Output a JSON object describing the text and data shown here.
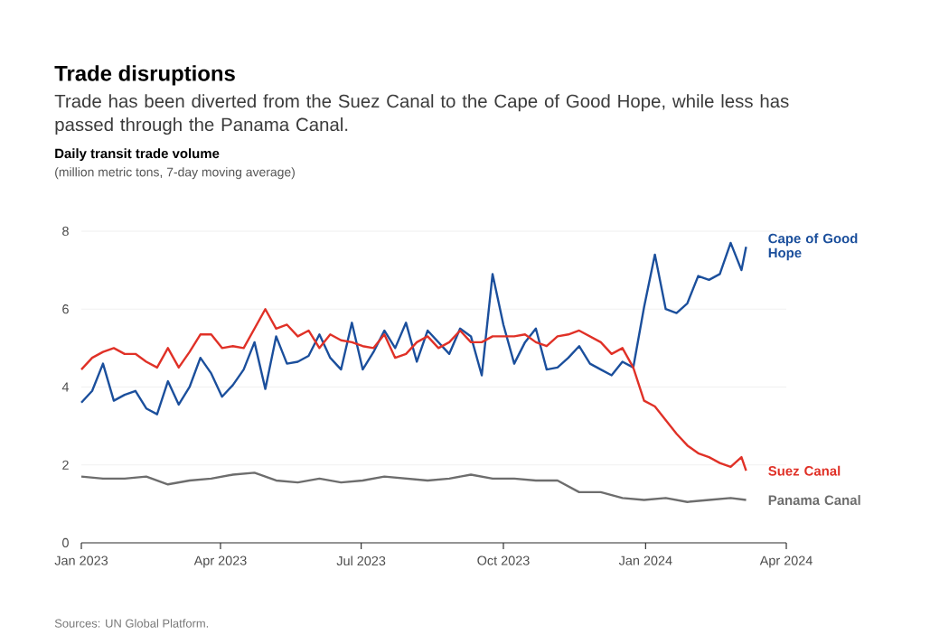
{
  "chart_data": {
    "type": "line",
    "title": "Trade disruptions",
    "subtitle": "Trade has been diverted from the Suez Canal to the Cape of Good Hope, while less has passed through the Panama Canal.",
    "ylabel": "Daily transit trade volume",
    "annotations": [
      "(million metric tons, 7-day moving average)",
      "Sources: UN Global Platform."
    ],
    "x": [
      "2023-01-01",
      "2023-01-08",
      "2023-01-15",
      "2023-01-22",
      "2023-01-29",
      "2023-02-05",
      "2023-02-12",
      "2023-02-19",
      "2023-02-26",
      "2023-03-05",
      "2023-03-12",
      "2023-03-19",
      "2023-03-26",
      "2023-04-02",
      "2023-04-09",
      "2023-04-16",
      "2023-04-23",
      "2023-04-30",
      "2023-05-07",
      "2023-05-14",
      "2023-05-21",
      "2023-05-28",
      "2023-06-04",
      "2023-06-11",
      "2023-06-18",
      "2023-06-25",
      "2023-07-02",
      "2023-07-09",
      "2023-07-16",
      "2023-07-23",
      "2023-07-30",
      "2023-08-06",
      "2023-08-13",
      "2023-08-20",
      "2023-08-27",
      "2023-09-03",
      "2023-09-10",
      "2023-09-17",
      "2023-09-24",
      "2023-10-01",
      "2023-10-08",
      "2023-10-15",
      "2023-10-22",
      "2023-10-29",
      "2023-11-05",
      "2023-11-12",
      "2023-11-19",
      "2023-11-26",
      "2023-12-03",
      "2023-12-10",
      "2023-12-17",
      "2023-12-24",
      "2023-12-31",
      "2024-01-07",
      "2024-01-14",
      "2024-01-21",
      "2024-01-28",
      "2024-02-04",
      "2024-02-11",
      "2024-02-18",
      "2024-02-25",
      "2024-03-03",
      "2024-03-06"
    ],
    "xlim": [
      "2023-01-01",
      "2024-04-01"
    ],
    "xticks": [
      {
        "value": "2023-01-01",
        "label": "Jan 2023"
      },
      {
        "value": "2023-04-01",
        "label": "Apr 2023"
      },
      {
        "value": "2023-07-01",
        "label": "Jul 2023"
      },
      {
        "value": "2023-10-01",
        "label": "Oct 2023"
      },
      {
        "value": "2024-01-01",
        "label": "Jan 2024"
      },
      {
        "value": "2024-04-01",
        "label": "Apr 2024"
      }
    ],
    "ylim": [
      0,
      8
    ],
    "yticks": [
      0,
      2,
      4,
      6,
      8
    ],
    "grid": "y",
    "series": [
      {
        "name": "Cape of Good Hope",
        "color": "#1b4f9c",
        "values": [
          3.6,
          3.9,
          4.6,
          3.65,
          3.8,
          3.9,
          3.45,
          3.3,
          4.15,
          3.55,
          4.0,
          4.75,
          4.35,
          3.75,
          4.05,
          4.45,
          5.15,
          3.95,
          5.3,
          4.6,
          4.65,
          4.8,
          5.35,
          4.75,
          4.45,
          5.65,
          4.45,
          4.9,
          5.45,
          5.0,
          5.65,
          4.65,
          5.45,
          5.15,
          4.85,
          5.5,
          5.3,
          4.3,
          6.9,
          5.6,
          4.6,
          5.15,
          5.5,
          4.45,
          4.5,
          4.75,
          5.05,
          4.6,
          4.45,
          4.3,
          4.65,
          4.5,
          6.05,
          7.4,
          6.0,
          5.9,
          6.15,
          6.85,
          6.75,
          6.9,
          7.7,
          7.0,
          7.6
        ]
      },
      {
        "name": "Suez Canal",
        "color": "#e03127",
        "values": [
          4.45,
          4.75,
          4.9,
          5.0,
          4.85,
          4.85,
          4.65,
          4.5,
          5.0,
          4.5,
          4.9,
          5.35,
          5.35,
          5.0,
          5.05,
          5.0,
          5.5,
          6.0,
          5.5,
          5.6,
          5.3,
          5.45,
          5.0,
          5.35,
          5.2,
          5.15,
          5.05,
          5.0,
          5.35,
          4.75,
          4.85,
          5.15,
          5.3,
          5.0,
          5.15,
          5.45,
          5.15,
          5.15,
          5.3,
          5.3,
          5.3,
          5.35,
          5.15,
          5.05,
          5.3,
          5.35,
          5.45,
          5.3,
          5.15,
          4.85,
          5.0,
          4.5,
          3.65,
          3.5,
          3.15,
          2.8,
          2.5,
          2.3,
          2.2,
          2.05,
          1.95,
          2.2,
          1.85
        ]
      },
      {
        "name": "Panama Canal",
        "color": "#6d6d6d",
        "x": [
          "2023-01-01",
          "2023-01-15",
          "2023-01-29",
          "2023-02-12",
          "2023-02-26",
          "2023-03-12",
          "2023-03-26",
          "2023-04-09",
          "2023-04-23",
          "2023-05-07",
          "2023-05-21",
          "2023-06-04",
          "2023-06-18",
          "2023-07-02",
          "2023-07-16",
          "2023-07-30",
          "2023-08-13",
          "2023-08-27",
          "2023-09-10",
          "2023-09-24",
          "2023-10-08",
          "2023-10-22",
          "2023-11-05",
          "2023-11-19",
          "2023-12-03",
          "2023-12-17",
          "2023-12-31",
          "2024-01-14",
          "2024-01-28",
          "2024-02-11",
          "2024-02-25",
          "2024-03-06"
        ],
        "values": [
          1.7,
          1.65,
          1.65,
          1.7,
          1.5,
          1.6,
          1.65,
          1.75,
          1.8,
          1.6,
          1.55,
          1.65,
          1.55,
          1.6,
          1.7,
          1.65,
          1.6,
          1.65,
          1.75,
          1.65,
          1.65,
          1.6,
          1.6,
          1.3,
          1.3,
          1.15,
          1.1,
          1.15,
          1.05,
          1.1,
          1.15,
          1.1
        ]
      }
    ]
  }
}
